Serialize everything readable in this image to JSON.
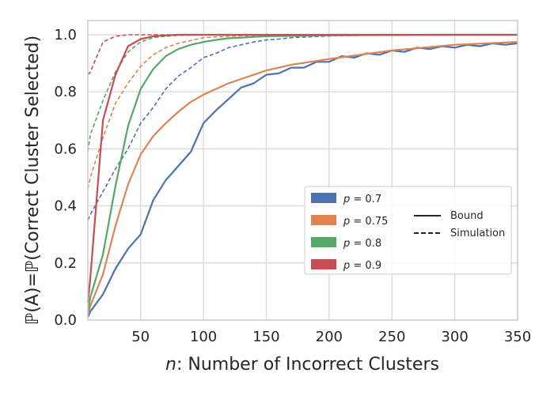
{
  "chart_data": {
    "type": "line",
    "title": "",
    "xlabel_italic": "n",
    "xlabel_rest": ": Number of Incorrect Clusters",
    "ylabel": "ℙ(A)=ℙ(Correct Cluster Selected)",
    "xlim": [
      8,
      350
    ],
    "ylim": [
      0,
      1.05
    ],
    "xticks": [
      50,
      100,
      150,
      200,
      250,
      300,
      350
    ],
    "yticks": [
      0.0,
      0.2,
      0.4,
      0.6,
      0.8,
      1.0
    ],
    "xtick_labels": [
      "50",
      "100",
      "150",
      "200",
      "250",
      "300",
      "350"
    ],
    "ytick_labels": [
      "0.0",
      "0.2",
      "0.4",
      "0.6",
      "0.8",
      "1.0"
    ],
    "grid": true,
    "legend_position": "lower-right",
    "linestyle_legend": [
      {
        "label": "Bound",
        "style": "solid"
      },
      {
        "label": "Simulation",
        "style": "dashed"
      }
    ],
    "series": [
      {
        "name": "p = 0.7",
        "p_value": "0.7",
        "color": "#4c72b0",
        "bound": {
          "x": [
            8,
            10,
            20,
            30,
            40,
            50,
            60,
            70,
            80,
            90,
            100,
            110,
            120,
            130,
            140,
            150,
            160,
            170,
            180,
            190,
            200,
            210,
            220,
            230,
            240,
            250,
            260,
            270,
            280,
            290,
            300,
            310,
            320,
            330,
            340,
            350
          ],
          "y": [
            0.01,
            0.03,
            0.09,
            0.18,
            0.25,
            0.3,
            0.42,
            0.49,
            0.54,
            0.59,
            0.69,
            0.735,
            0.775,
            0.815,
            0.83,
            0.86,
            0.865,
            0.885,
            0.885,
            0.905,
            0.905,
            0.925,
            0.92,
            0.935,
            0.93,
            0.945,
            0.94,
            0.955,
            0.95,
            0.96,
            0.955,
            0.965,
            0.96,
            0.97,
            0.965,
            0.97
          ]
        },
        "simulation": {
          "x": [
            8,
            10,
            20,
            30,
            40,
            50,
            60,
            70,
            80,
            90,
            100,
            110,
            120,
            130,
            140,
            150,
            160,
            170,
            180,
            190,
            200,
            220,
            250,
            300,
            350
          ],
          "y": [
            0.35,
            0.37,
            0.45,
            0.53,
            0.6,
            0.69,
            0.745,
            0.81,
            0.855,
            0.885,
            0.92,
            0.935,
            0.955,
            0.965,
            0.975,
            0.982,
            0.985,
            0.99,
            0.992,
            0.994,
            0.996,
            0.998,
            0.999,
            1.0,
            1.0
          ]
        }
      },
      {
        "name": "p = 0.75",
        "p_value": "0.75",
        "color": "#dd8452",
        "bound": {
          "x": [
            8,
            10,
            20,
            30,
            40,
            50,
            60,
            70,
            80,
            90,
            100,
            110,
            120,
            130,
            140,
            150,
            170,
            200,
            250,
            300,
            350
          ],
          "y": [
            0.02,
            0.05,
            0.16,
            0.33,
            0.475,
            0.58,
            0.645,
            0.69,
            0.73,
            0.765,
            0.79,
            0.81,
            0.83,
            0.845,
            0.86,
            0.875,
            0.895,
            0.915,
            0.945,
            0.965,
            0.975
          ]
        },
        "simulation": {
          "x": [
            8,
            10,
            20,
            30,
            40,
            50,
            60,
            70,
            80,
            90,
            100,
            120,
            150,
            200,
            250,
            300,
            350
          ],
          "y": [
            0.46,
            0.5,
            0.64,
            0.76,
            0.83,
            0.89,
            0.93,
            0.955,
            0.97,
            0.98,
            0.99,
            0.995,
            0.998,
            1.0,
            1.0,
            1.0,
            1.0
          ]
        }
      },
      {
        "name": "p = 0.8",
        "p_value": "0.8",
        "color": "#55a868",
        "bound": {
          "x": [
            8,
            10,
            20,
            30,
            40,
            50,
            60,
            70,
            80,
            90,
            100,
            110,
            120,
            130,
            140,
            150,
            200,
            250,
            300,
            350
          ],
          "y": [
            0.03,
            0.08,
            0.23,
            0.47,
            0.68,
            0.81,
            0.88,
            0.925,
            0.95,
            0.965,
            0.975,
            0.982,
            0.988,
            0.99,
            0.993,
            0.995,
            0.998,
            0.999,
            1.0,
            1.0
          ]
        },
        "simulation": {
          "x": [
            8,
            10,
            20,
            30,
            40,
            50,
            60,
            70,
            80,
            100,
            150,
            200,
            250,
            300,
            350
          ],
          "y": [
            0.59,
            0.65,
            0.77,
            0.87,
            0.94,
            0.975,
            0.99,
            0.995,
            0.998,
            1.0,
            1.0,
            1.0,
            1.0,
            1.0,
            1.0
          ]
        }
      },
      {
        "name": "p = 0.9",
        "p_value": "0.9",
        "color": "#c44e52",
        "bound": {
          "x": [
            8,
            10,
            20,
            30,
            40,
            50,
            60,
            70,
            80,
            100,
            150,
            200,
            250,
            300,
            350
          ],
          "y": [
            0.06,
            0.15,
            0.7,
            0.86,
            0.96,
            0.985,
            0.995,
            0.998,
            1.0,
            1.0,
            1.0,
            1.0,
            1.0,
            1.0,
            1.0
          ]
        },
        "simulation": {
          "x": [
            8,
            10,
            20,
            30,
            40,
            50,
            60,
            100,
            150,
            200,
            250,
            300,
            350
          ],
          "y": [
            0.86,
            0.87,
            0.975,
            0.995,
            1.0,
            1.0,
            1.0,
            1.0,
            1.0,
            1.0,
            1.0,
            1.0,
            1.0
          ]
        }
      }
    ]
  }
}
